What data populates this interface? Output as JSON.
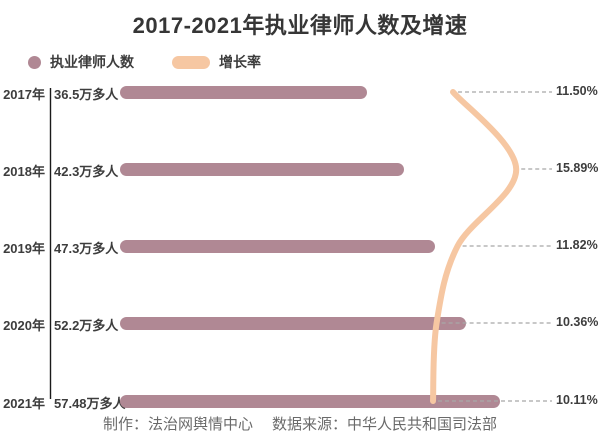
{
  "title": "2017-2021年执业律师人数及增速",
  "legend": {
    "items": [
      {
        "label": "执业律师人数",
        "marker": "circle",
        "color": "#b08894"
      },
      {
        "label": "增长率",
        "marker": "pill",
        "color": "#f6c7a2"
      }
    ]
  },
  "chart_data": {
    "type": "bar",
    "orientation": "horizontal",
    "title": "2017-2021年执业律师人数及增速",
    "categories": [
      "2017年",
      "2018年",
      "2019年",
      "2020年",
      "2021年"
    ],
    "series": [
      {
        "name": "执业律师人数",
        "type": "bar",
        "unit": "万人",
        "values": [
          36.5,
          42.3,
          47.3,
          52.2,
          57.48
        ],
        "labels": [
          "36.5万多人",
          "42.3万多人",
          "47.3万多人",
          "52.2万多人",
          "57.48万多人"
        ],
        "color": "#b08894"
      },
      {
        "name": "增长率",
        "type": "line",
        "unit": "%",
        "values": [
          11.5,
          15.89,
          11.82,
          10.36,
          10.11
        ],
        "labels": [
          "11.50%",
          "15.89%",
          "11.82%",
          "10.36%",
          "10.11%"
        ],
        "color": "#f6c7a2"
      }
    ],
    "grid": false,
    "legend_position": "top-left",
    "value_label_position": "left-of-bar",
    "rate_label_position": "right-edge"
  },
  "footer": {
    "maker": "制作：法治网舆情中心",
    "source": "数据来源：中华人民共和国司法部"
  },
  "colors": {
    "bar": "#b08894",
    "line": "#f6c7a2",
    "dash_line": "#a8a8a8",
    "axis": "#1a1a1a",
    "label_text": "#3d3d3d",
    "footer_text": "#6a6a6a",
    "background": "#ffffff"
  }
}
